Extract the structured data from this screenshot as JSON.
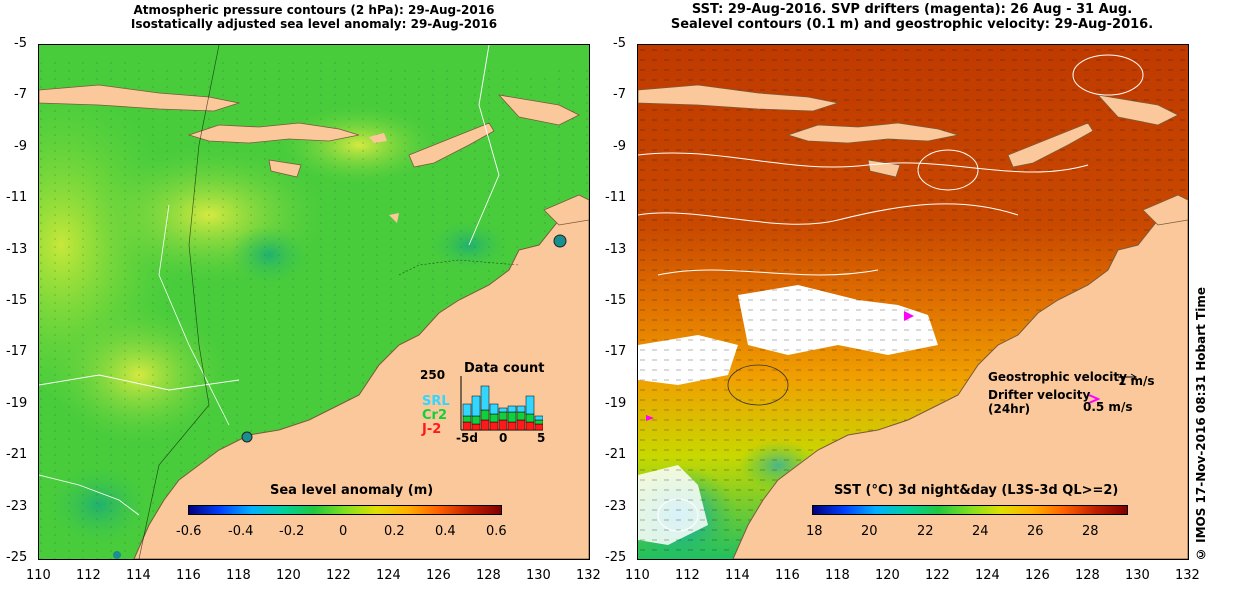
{
  "left_panel": {
    "title_line1": "Atmospheric pressure contours (2 hPa): 29-Aug-2016",
    "title_line2": "Isostatically adjusted sea level anomaly: 29-Aug-2016",
    "colorbar": {
      "title": "Sea level anomaly (m)",
      "labels": [
        "-0.6",
        "-0.4",
        "-0.2",
        "0",
        "0.2",
        "0.4",
        "0.6"
      ]
    },
    "data_count": {
      "title": "Data count",
      "ymax_label": "250",
      "xlabels": [
        "-5d",
        "0",
        "5"
      ],
      "legend": [
        {
          "name": "SRL",
          "color": "#33d6ff"
        },
        {
          "name": "Cr2",
          "color": "#10d040"
        },
        {
          "name": "J-2",
          "color": "#ff1a1a"
        }
      ]
    }
  },
  "right_panel": {
    "title_line1": "SST: 29-Aug-2016. SVP drifters (magenta): 26 Aug - 31 Aug.",
    "title_line2": "Sealevel contours (0.1 m) and geostrophic velocity: 29-Aug-2016.",
    "colorbar": {
      "title": "SST (°C) 3d night&day (L3S-3d QL>=2)",
      "labels": [
        "18",
        "20",
        "22",
        "24",
        "26",
        "28"
      ]
    },
    "legend": {
      "geostrophic_label": "Geostrophic velocity",
      "geostrophic_scale": "1 m/s",
      "drifter_label": "Drifter velocity",
      "drifter_sub": "(24hr)",
      "drifter_scale": "0.5 m/s"
    }
  },
  "axes": {
    "x_ticks": [
      "110",
      "112",
      "114",
      "116",
      "118",
      "120",
      "122",
      "124",
      "126",
      "128",
      "130",
      "132"
    ],
    "y_ticks": [
      "-5",
      "-7",
      "-9",
      "-11",
      "-13",
      "-15",
      "-17",
      "-19",
      "-21",
      "-23",
      "-25"
    ]
  },
  "credit": "© IMOS 17-Nov-2016 08:31 Hobart Time",
  "colors": {
    "land": "#fac89a",
    "sla_green": "#34cc34",
    "sst_hot": "#c83c00",
    "drifter": "#ff00ff"
  }
}
